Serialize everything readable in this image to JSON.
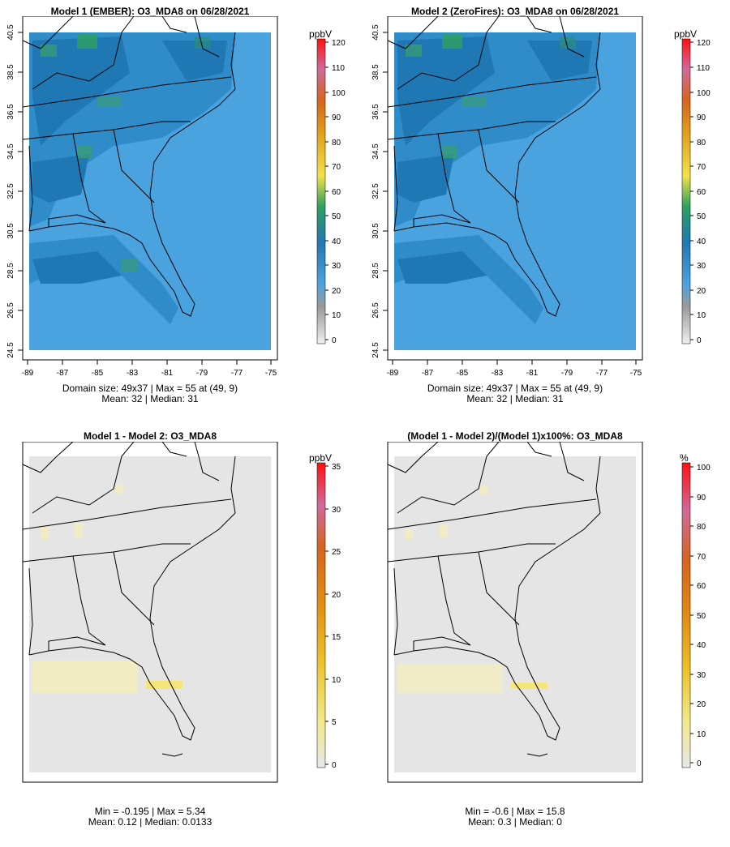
{
  "panels": [
    {
      "title": "Model 1 (EMBER): O3_MDA8 on 06/28/2021",
      "unit": "ppbV",
      "caption_line1": "Domain size: 49x37 | Max = 55 at (49, 9)",
      "caption_line2": "Mean: 32 |  Median: 31",
      "lat_ticks": [
        "40.5",
        "38.5",
        "36.5",
        "34.5",
        "32.5",
        "30.5",
        "28.5",
        "26.5",
        "24.5"
      ],
      "lon_ticks": [
        "-89",
        "-87",
        "-85",
        "-83",
        "-81",
        "-79",
        "-77",
        "-75"
      ],
      "colorbar_ticks": [
        "120",
        "110",
        "100",
        "90",
        "80",
        "70",
        "60",
        "50",
        "40",
        "30",
        "20",
        "10",
        "0"
      ]
    },
    {
      "title": "Model 2 (ZeroFires): O3_MDA8 on 06/28/2021",
      "unit": "ppbV",
      "caption_line1": "Domain size: 49x37 | Max = 55 at (49, 9)",
      "caption_line2": "Mean: 32 |  Median: 31",
      "lat_ticks": [
        "40.5",
        "38.5",
        "36.5",
        "34.5",
        "32.5",
        "30.5",
        "28.5",
        "26.5",
        "24.5"
      ],
      "lon_ticks": [
        "-89",
        "-87",
        "-85",
        "-83",
        "-81",
        "-79",
        "-77",
        "-75"
      ],
      "colorbar_ticks": [
        "120",
        "110",
        "100",
        "90",
        "80",
        "70",
        "60",
        "50",
        "40",
        "30",
        "20",
        "10",
        "0"
      ]
    },
    {
      "title": "Model 1 - Model 2: O3_MDA8",
      "unit": "ppbV",
      "caption_line1": "Min = -0.195 | Max = 5.34",
      "caption_line2": "Mean: 0.12 |  Median: 0.0133",
      "colorbar_ticks": [
        "35",
        "30",
        "25",
        "20",
        "15",
        "10",
        "5",
        "0"
      ]
    },
    {
      "title": "(Model 1 - Model 2)/(Model 1)x100%: O3_MDA8",
      "unit": "%",
      "caption_line1": "Min = -0.6 | Max = 15.8",
      "caption_line2": "Mean: 0.3 |  Median: 0",
      "colorbar_ticks": [
        "100",
        "90",
        "80",
        "70",
        "60",
        "50",
        "40",
        "30",
        "20",
        "10",
        "0"
      ]
    }
  ],
  "colors": {
    "ocean_blue": "#4aa3df",
    "land_blue": "#2f8cc9",
    "mid_blue": "#1f78b4",
    "green": "#2ea05f",
    "diff_gray": "#e5e5e5",
    "diff_yellow": "#f6e57a"
  }
}
